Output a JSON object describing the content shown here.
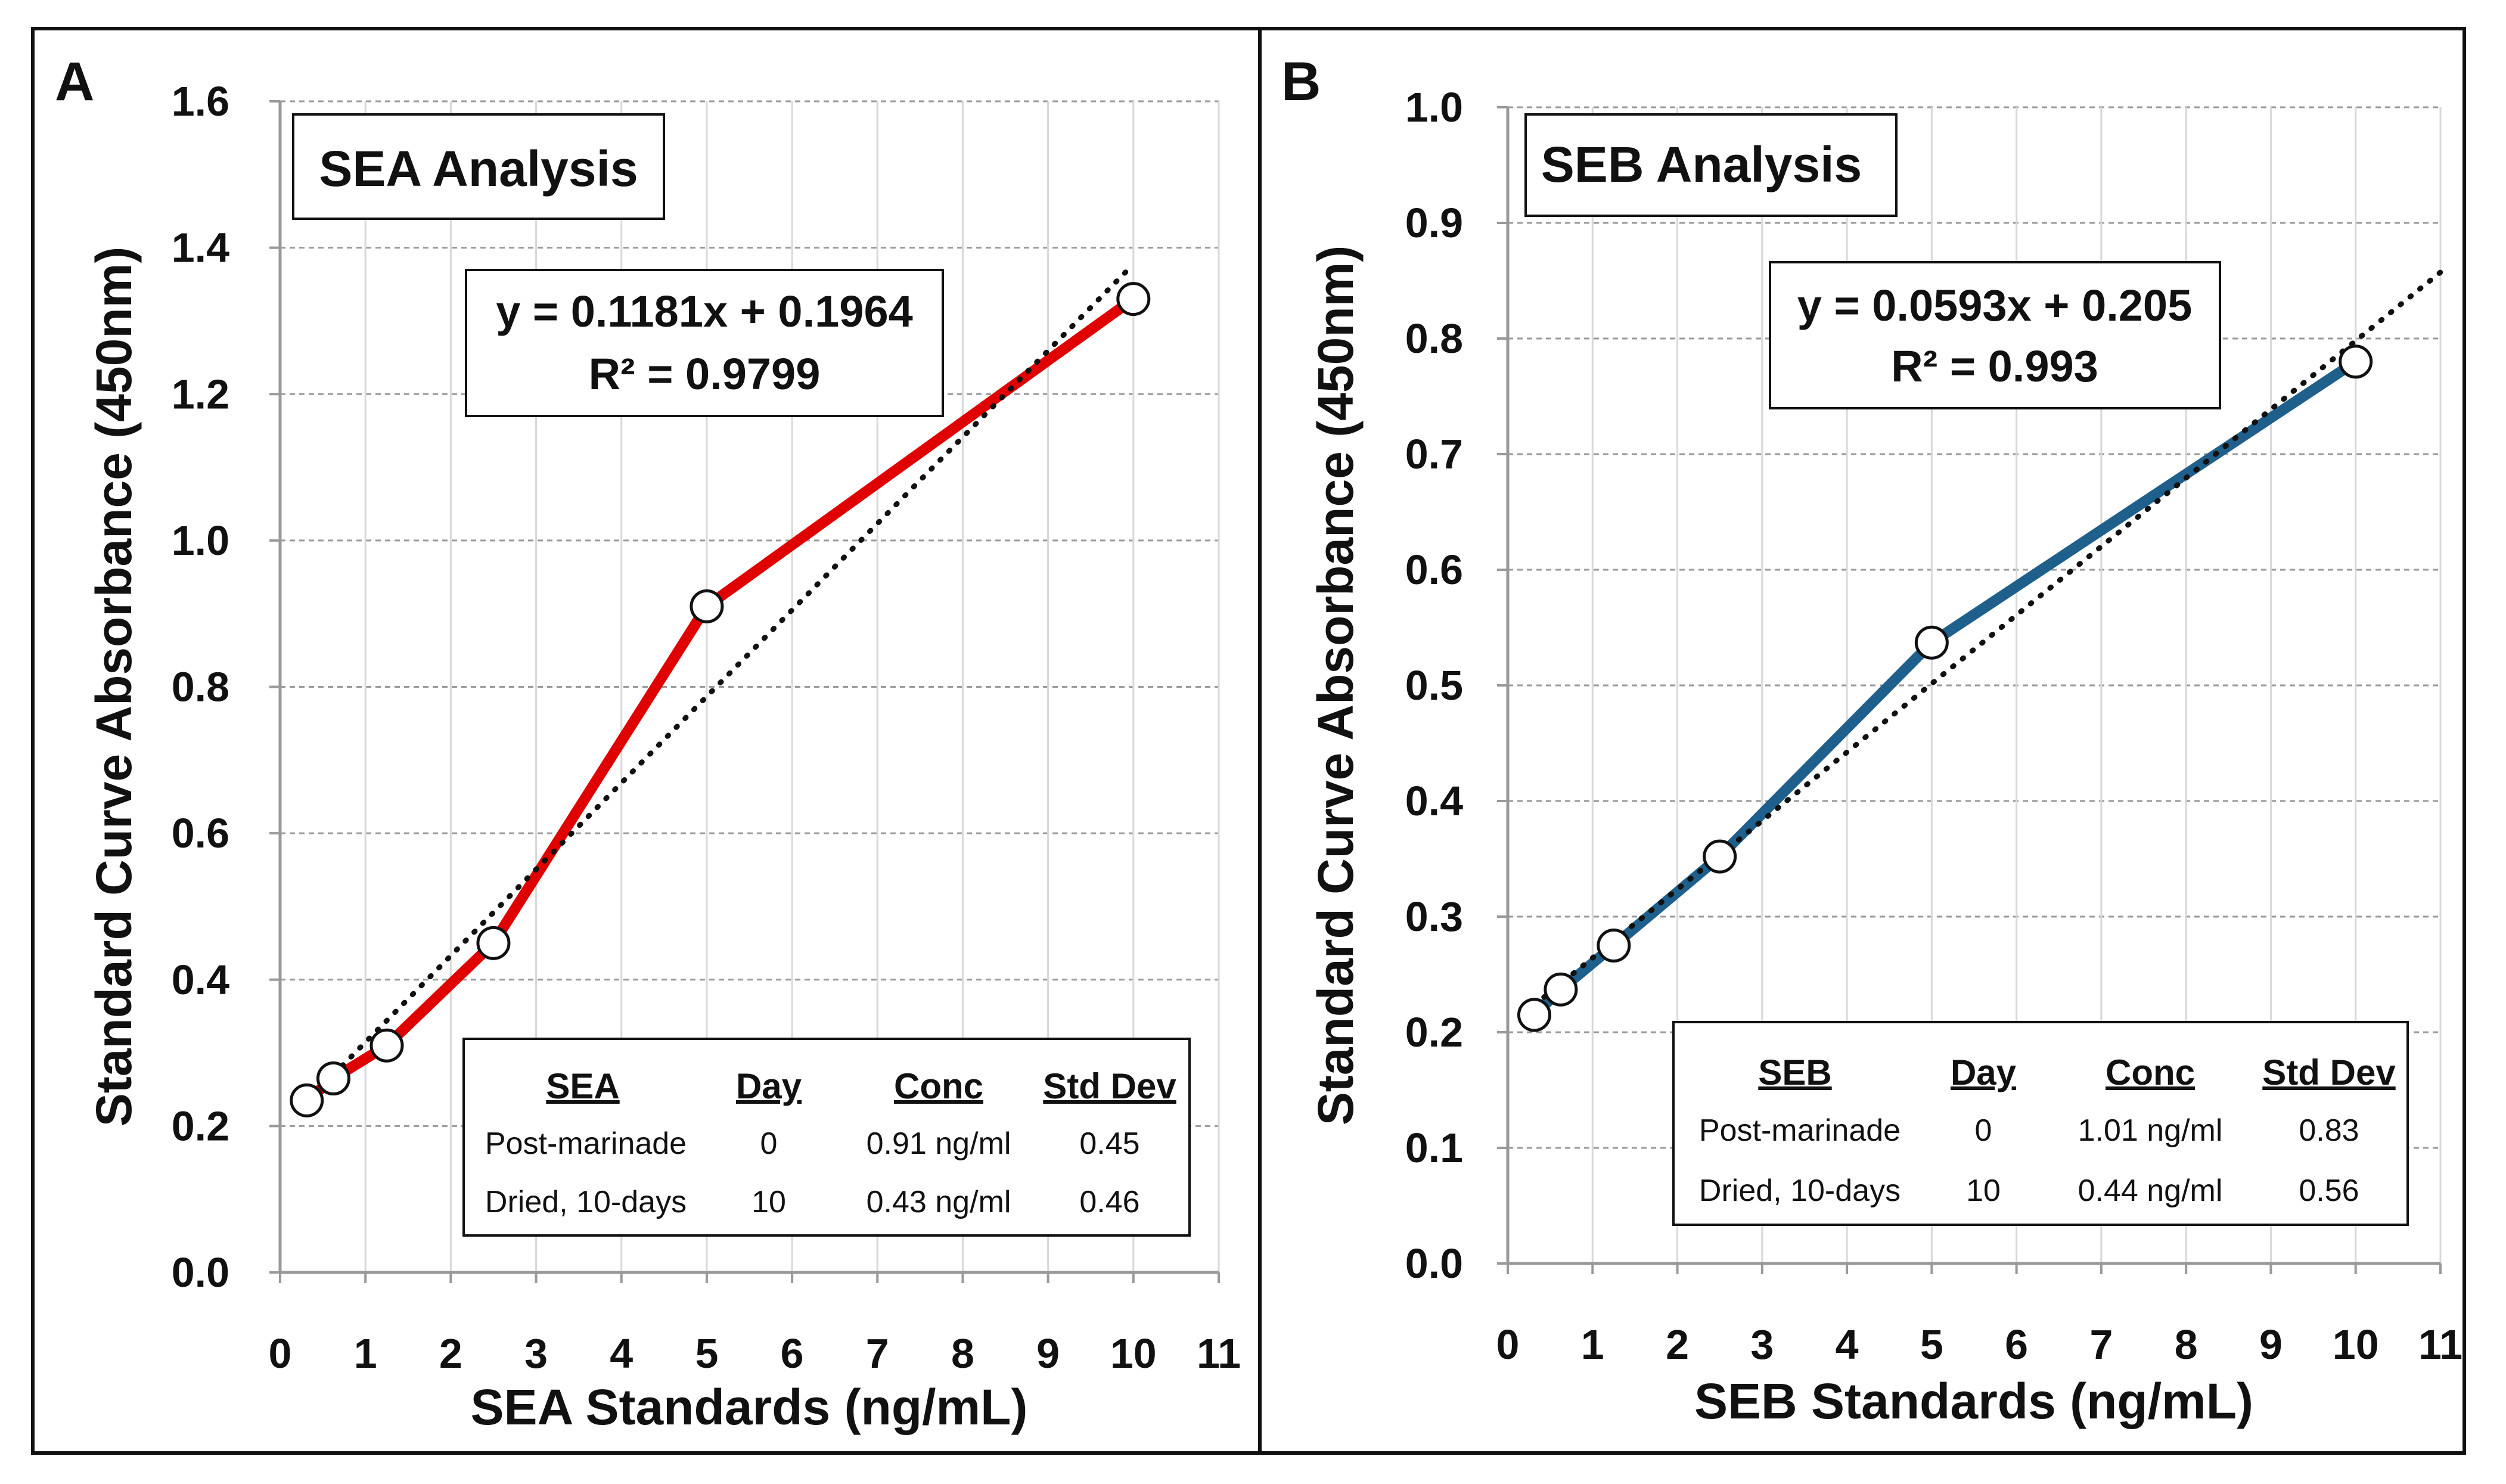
{
  "chart_data": [
    {
      "type": "line",
      "panel_label": "A",
      "title": "SEA Analysis",
      "xlabel": "SEA Standards (ng/mL)",
      "ylabel": "Standard Curve Absorbance (450nm)",
      "xlim": [
        0,
        11
      ],
      "ylim": [
        0.0,
        1.6
      ],
      "xticks": [
        0,
        1,
        2,
        3,
        4,
        5,
        6,
        7,
        8,
        9,
        10,
        11
      ],
      "yticks": [
        0.0,
        0.2,
        0.4,
        0.6,
        0.8,
        1.0,
        1.2,
        1.4,
        1.6
      ],
      "x_tick_labels": [
        "0",
        "1",
        "2",
        "3",
        "4",
        "5",
        "6",
        "7",
        "8",
        "9",
        "10",
        "11"
      ],
      "y_tick_labels": [
        "0.0",
        "0.2",
        "0.4",
        "0.6",
        "0.8",
        "1.0",
        "1.2",
        "1.4",
        "1.6"
      ],
      "grid": true,
      "series": [
        {
          "name": "SEA standards",
          "color": "#e00000",
          "x": [
            0.3125,
            0.625,
            1.25,
            2.5,
            5,
            10
          ],
          "y": [
            0.235,
            0.265,
            0.31,
            0.45,
            0.91,
            1.33
          ]
        }
      ],
      "trendline": {
        "slope": 0.1181,
        "intercept": 0.1964,
        "x_range": [
          0.625,
          10
        ],
        "color": "#111111"
      },
      "equation": {
        "line1": "y = 0.1181x + 0.1964",
        "line2": "R² = 0.9799"
      },
      "table": {
        "headers": [
          "SEA",
          "Day",
          "Conc",
          "Std Dev"
        ],
        "rows": [
          [
            "Post-marinade",
            "0",
            "0.91 ng/ml",
            "0.45"
          ],
          [
            "Dried, 10-days",
            "10",
            "0.43 ng/ml",
            "0.46"
          ]
        ]
      }
    },
    {
      "type": "line",
      "panel_label": "B",
      "title": "SEB Analysis",
      "xlabel": "SEB Standards (ng/mL)",
      "ylabel": "Standard Curve Absorbance (450nm)",
      "xlim": [
        0,
        11
      ],
      "ylim": [
        0.0,
        1.0
      ],
      "xticks": [
        0,
        1,
        2,
        3,
        4,
        5,
        6,
        7,
        8,
        9,
        10,
        11
      ],
      "yticks": [
        0.0,
        0.1,
        0.2,
        0.3,
        0.4,
        0.5,
        0.6,
        0.7,
        0.8,
        0.9,
        1.0
      ],
      "x_tick_labels": [
        "0",
        "1",
        "2",
        "3",
        "4",
        "5",
        "6",
        "7",
        "8",
        "9",
        "10",
        "11"
      ],
      "y_tick_labels": [
        "0.0",
        "0.1",
        "0.2",
        "0.3",
        "0.4",
        "0.5",
        "0.6",
        "0.7",
        "0.8",
        "0.9",
        "1.0"
      ],
      "grid": true,
      "series": [
        {
          "name": "SEB standards",
          "color": "#1f5f8b",
          "x": [
            0.3125,
            0.625,
            1.25,
            2.5,
            5,
            10
          ],
          "y": [
            0.215,
            0.237,
            0.275,
            0.352,
            0.537,
            0.78
          ]
        }
      ],
      "trendline": {
        "slope": 0.0593,
        "intercept": 0.205,
        "x_range": [
          0.3125,
          11
        ],
        "color": "#111111"
      },
      "equation": {
        "line1": "y = 0.0593x + 0.205",
        "line2": "R² = 0.993"
      },
      "table": {
        "headers": [
          "SEB",
          "Day",
          "Conc",
          "Std Dev"
        ],
        "rows": [
          [
            "Post-marinade",
            "0",
            "1.01 ng/ml",
            "0.83"
          ],
          [
            "Dried, 10-days",
            "10",
            "0.44 ng/ml",
            "0.56"
          ]
        ]
      }
    }
  ]
}
